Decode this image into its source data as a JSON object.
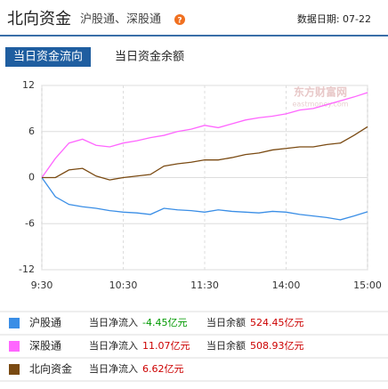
{
  "header": {
    "title": "北向资金",
    "subtitle": "沪股通、深股通",
    "help": "?",
    "date": "数据日期: 07-22"
  },
  "tabs": [
    "当日资金流向",
    "当日资金余额"
  ],
  "watermark": {
    "name": "东方财富网",
    "site": "eastmoney.com"
  },
  "chart_data": {
    "type": "line",
    "categories": [
      "9:30",
      null,
      null,
      null,
      null,
      null,
      "10:30",
      null,
      null,
      null,
      null,
      null,
      "11:30",
      null,
      null,
      null,
      null,
      null,
      "14:00",
      null,
      null,
      null,
      null,
      null,
      "15:00"
    ],
    "ylim": [
      -12,
      12
    ],
    "yticks": [
      12,
      6,
      0,
      -6,
      -12
    ],
    "grid": true,
    "series": [
      {
        "name": "沪股通",
        "color": "#3a8ee6",
        "values": [
          0,
          -2.5,
          -3.5,
          -3.8,
          -4.0,
          -4.3,
          -4.5,
          -4.6,
          -4.8,
          -4.0,
          -4.2,
          -4.3,
          -4.5,
          -4.2,
          -4.4,
          -4.5,
          -4.6,
          -4.4,
          -4.5,
          -4.8,
          -5.0,
          -5.2,
          -5.5,
          -5.0,
          -4.45
        ]
      },
      {
        "name": "深股通",
        "color": "#ff66ff",
        "values": [
          0,
          2.5,
          4.5,
          5.0,
          4.2,
          4.0,
          4.5,
          4.8,
          5.2,
          5.5,
          6.0,
          6.3,
          6.8,
          6.5,
          7.0,
          7.5,
          7.8,
          8.0,
          8.3,
          8.8,
          9.0,
          9.5,
          10.0,
          10.5,
          11.07
        ]
      },
      {
        "name": "北向资金",
        "color": "#7a4a12",
        "values": [
          0,
          0,
          1.0,
          1.2,
          0.2,
          -0.3,
          0,
          0.2,
          0.4,
          1.5,
          1.8,
          2.0,
          2.3,
          2.3,
          2.6,
          3.0,
          3.2,
          3.6,
          3.8,
          4.0,
          4.0,
          4.3,
          4.5,
          5.5,
          6.62
        ]
      }
    ]
  },
  "summary": [
    {
      "inflow_label": "当日净流入",
      "inflow": "-4.45亿元",
      "balance_label": "当日余额",
      "balance": "524.45亿元"
    },
    {
      "inflow_label": "当日净流入",
      "inflow": "11.07亿元",
      "balance_label": "当日余额",
      "balance": "508.93亿元"
    },
    {
      "inflow_label": "当日净流入",
      "inflow": "6.62亿元"
    }
  ]
}
